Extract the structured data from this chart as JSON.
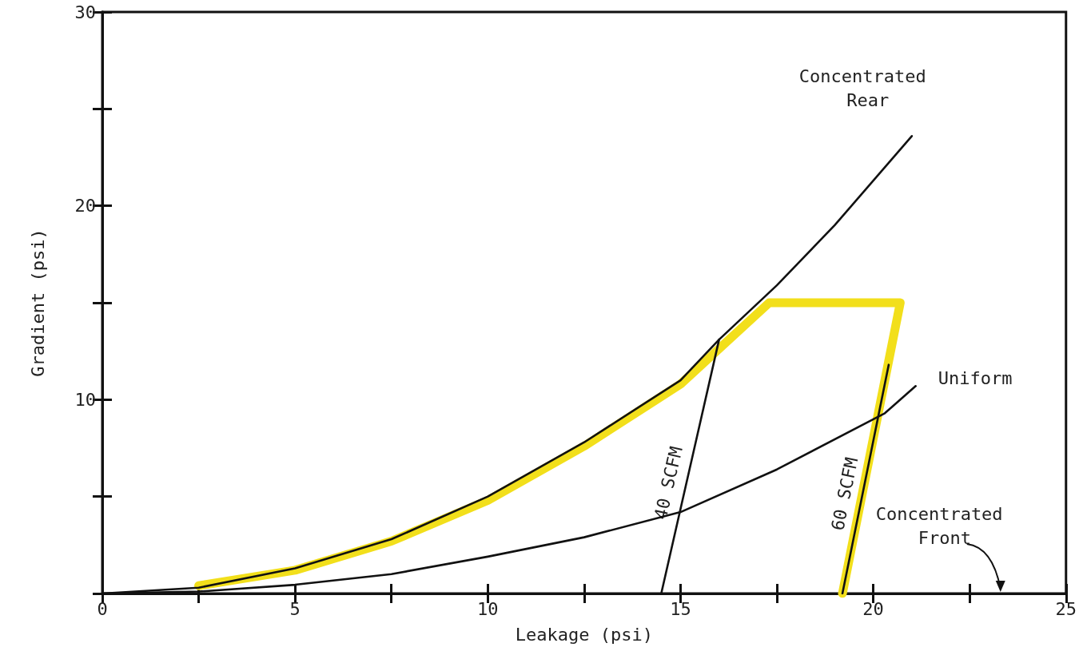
{
  "chart_data": {
    "type": "line",
    "xlabel": "Leakage (psi)",
    "ylabel": "Gradient (psi)",
    "xlim": [
      0,
      25
    ],
    "ylim": [
      0,
      30
    ],
    "xticks": [
      0,
      {
        "value": 2.5,
        "label": null
      },
      5,
      {
        "value": 7.5,
        "label": null
      },
      10,
      {
        "value": 12.5,
        "label": null
      },
      15,
      {
        "value": 17.5,
        "label": null
      },
      20,
      {
        "value": 22.5,
        "label": null
      },
      25
    ],
    "yticks": [
      {
        "value": 0,
        "label": null
      },
      {
        "value": 5,
        "label": null
      },
      10,
      {
        "value": 15,
        "label": null
      },
      20,
      {
        "value": 25,
        "label": null
      },
      30
    ],
    "grid": false,
    "legend": false,
    "marker": "none",
    "line_style": "solid",
    "series": [
      {
        "color": "#f2df1b",
        "x": [
          2.5,
          5,
          7.5,
          10,
          12.5,
          15,
          17.3,
          20.7,
          19.2
        ],
        "values": [
          0.4,
          1.2,
          2.7,
          4.8,
          7.6,
          10.8,
          15.0,
          15.0,
          0
        ]
      },
      {
        "name": "Concentrated Rear",
        "color": "#111111",
        "x": [
          0,
          2.5,
          5,
          7.5,
          10,
          12.5,
          15,
          16,
          17.5,
          19,
          21
        ],
        "values": [
          0,
          0.3,
          1.3,
          2.8,
          5.0,
          7.8,
          11.0,
          13.1,
          15.9,
          19.0,
          23.6
        ]
      },
      {
        "name": "Uniform",
        "color": "#111111",
        "x": [
          0,
          2.5,
          5,
          7.5,
          10,
          12.5,
          15,
          17.5,
          20.3,
          21.1
        ],
        "values": [
          0,
          0.1,
          0.45,
          1.0,
          1.9,
          2.9,
          4.2,
          6.4,
          9.3,
          10.7
        ]
      },
      {
        "name": "40 SCFM",
        "color": "#111111",
        "x": [
          14.5,
          16.0
        ],
        "values": [
          0,
          13.1
        ]
      },
      {
        "name": "60 SCFM",
        "color": "#111111",
        "x": [
          19.2,
          20.4
        ],
        "values": [
          0,
          11.8
        ]
      }
    ],
    "annotations": [
      "Concentrated Front"
    ]
  }
}
